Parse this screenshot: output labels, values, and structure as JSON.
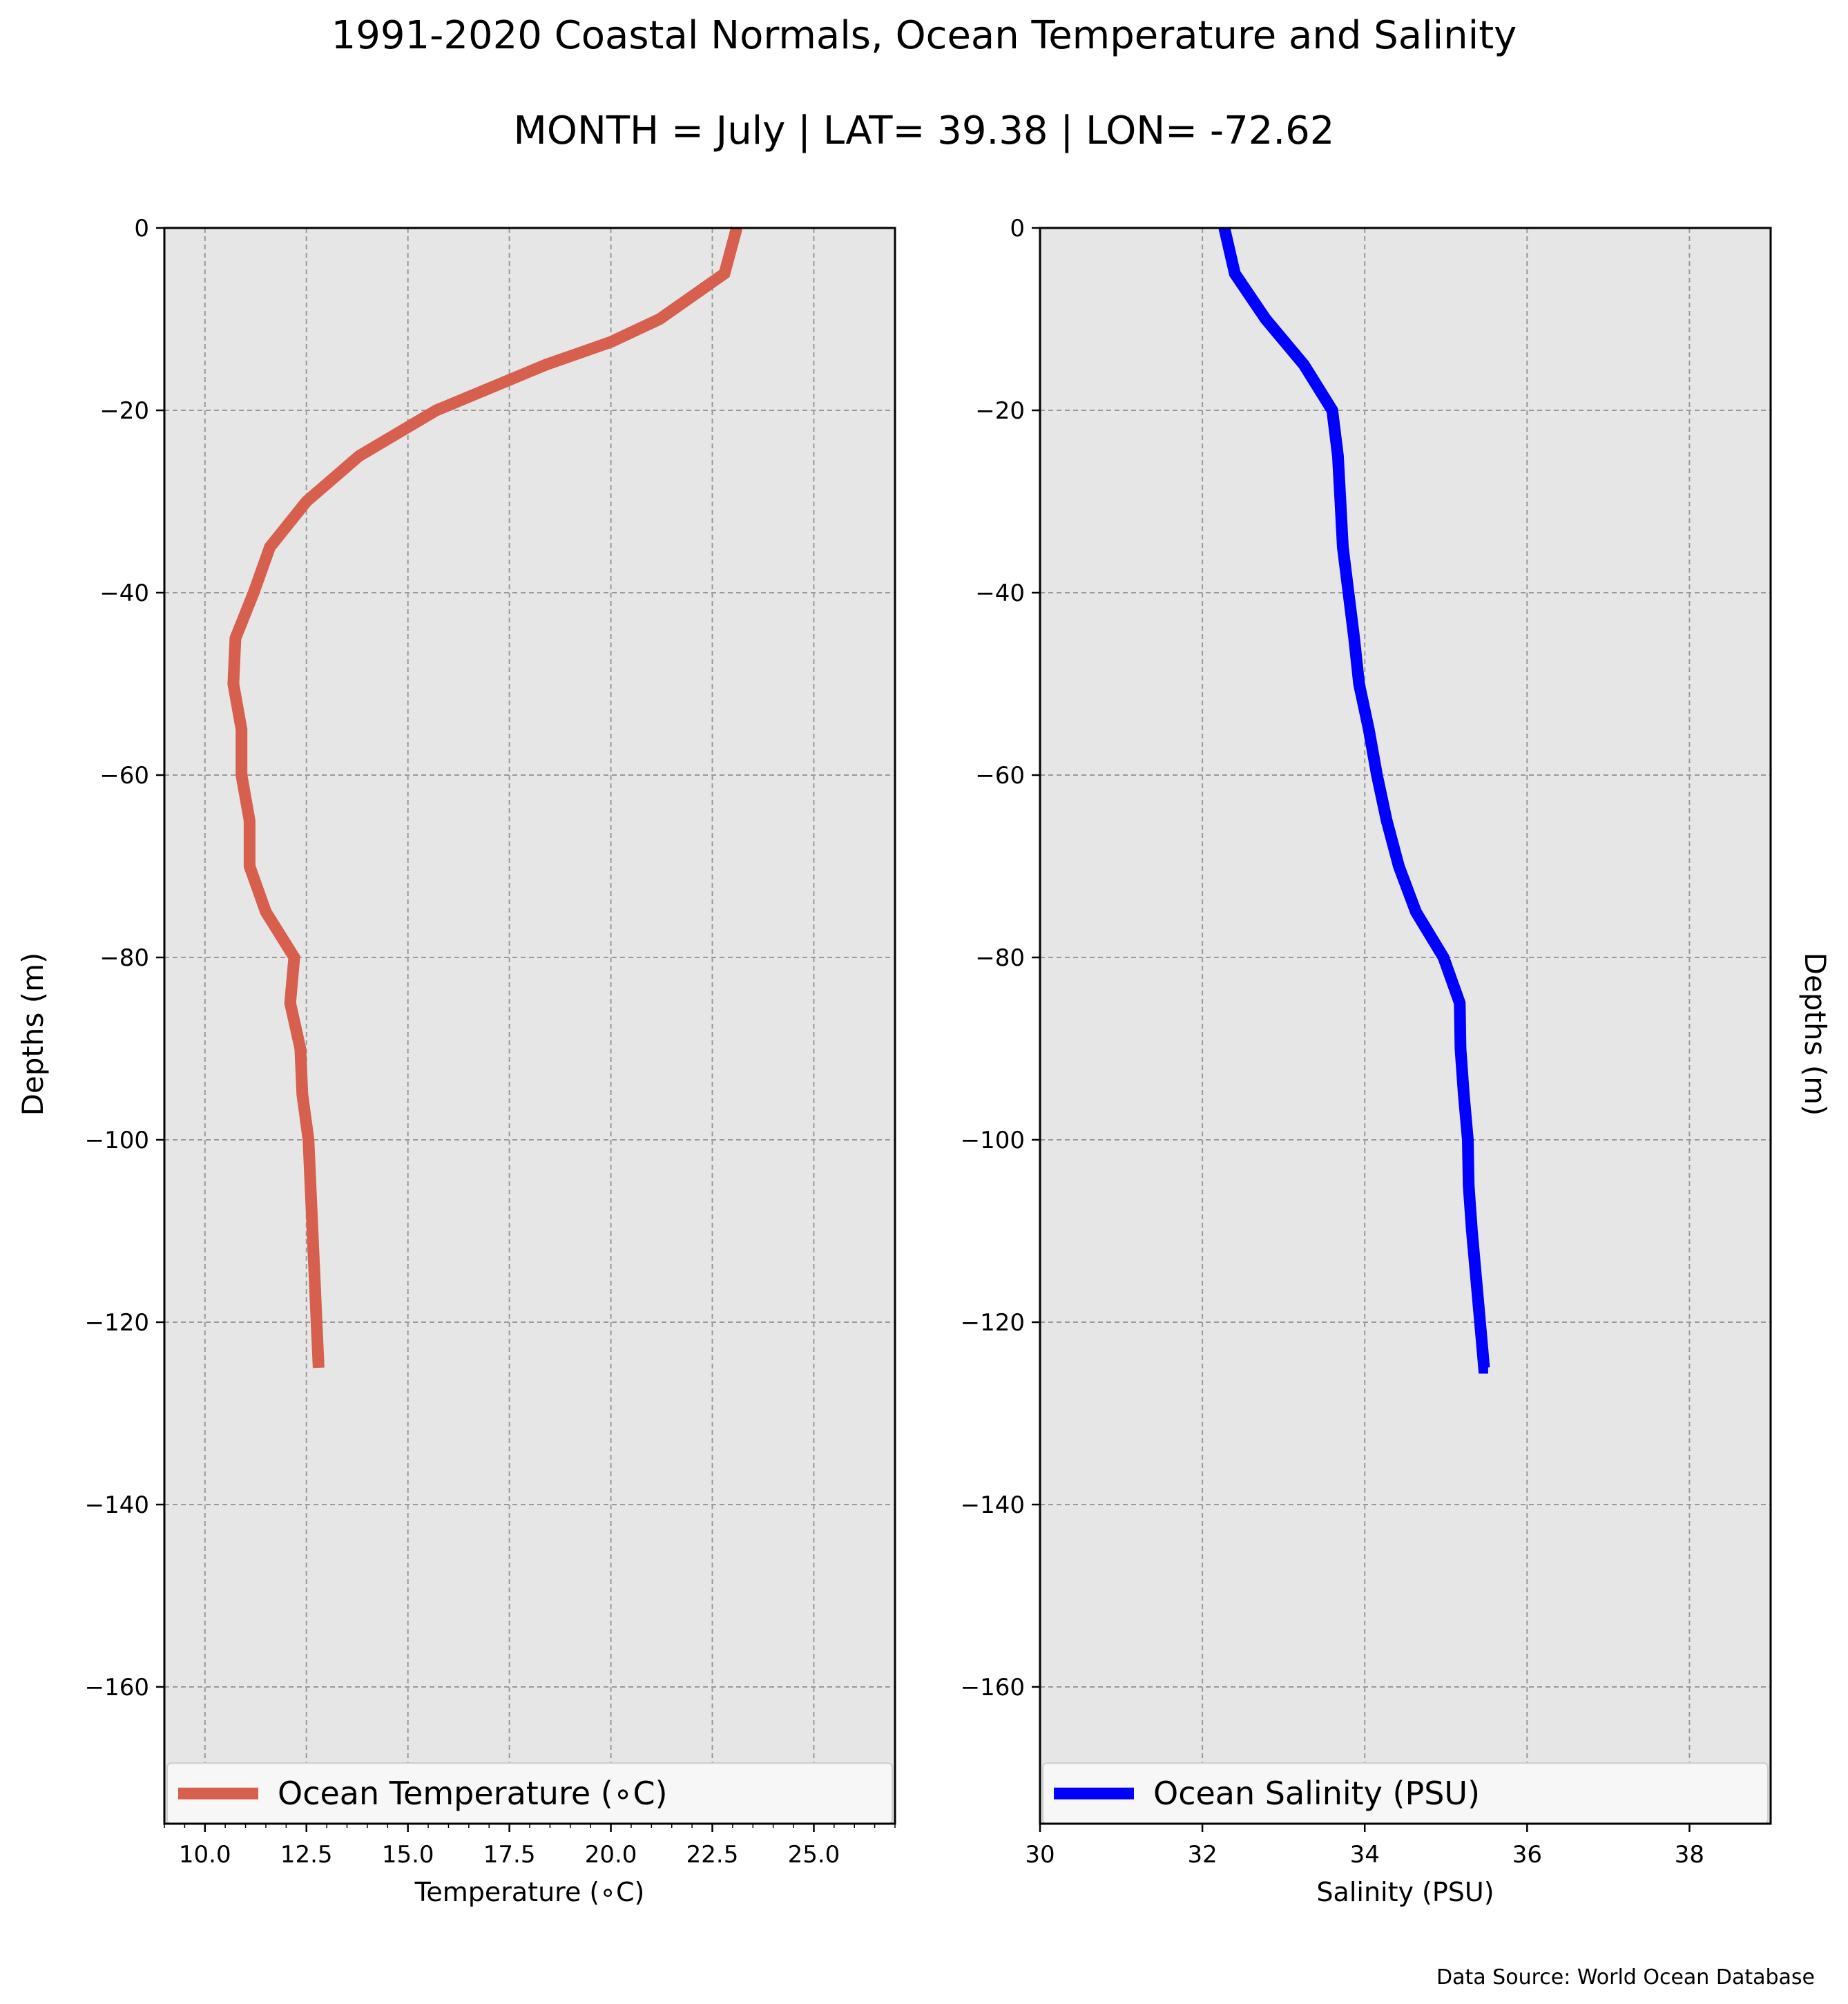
{
  "title": "1991-2020 Coastal Normals, Ocean Temperature and Salinity",
  "subtitle": "MONTH = July | LAT= 39.38 | LON= -72.62",
  "source_note": "Data Source: World Ocean Database",
  "colors": {
    "temperature": "#d65f4e",
    "salinity": "#0000ff",
    "plot_bg": "#e6e6e6",
    "grid": "#999999",
    "legend_bg": "#f7f7f7"
  },
  "chart_data": [
    {
      "type": "line",
      "xlabel": "Temperature (∘C)",
      "ylabel": "Depths (m)",
      "xlim": [
        9.0,
        27.0
      ],
      "ylim": [
        -175,
        0
      ],
      "xticks": [
        10.0,
        12.5,
        15.0,
        17.5,
        20.0,
        22.5,
        25.0
      ],
      "xtick_labels": [
        "10.0",
        "12.5",
        "15.0",
        "17.5",
        "20.0",
        "22.5",
        "25.0"
      ],
      "yticks": [
        0,
        -20,
        -40,
        -60,
        -80,
        -100,
        -120,
        -140,
        -160
      ],
      "ytick_labels": [
        "0",
        "−20",
        "−40",
        "−60",
        "−80",
        "−100",
        "−120",
        "−140",
        "−160"
      ],
      "grid": true,
      "legend_position": "bottom",
      "series": [
        {
          "name": "Ocean Temperature (∘C)",
          "color": "#d65f4e",
          "x": [
            23.1,
            22.8,
            21.2,
            20.0,
            18.4,
            15.7,
            13.8,
            12.5,
            11.6,
            11.2,
            10.75,
            10.7,
            10.9,
            10.9,
            11.1,
            11.1,
            11.5,
            12.2,
            12.1,
            12.35,
            12.4,
            12.55,
            12.6,
            12.65,
            12.7,
            12.75,
            12.8
          ],
          "y": [
            0,
            -5,
            -10,
            -12.5,
            -15,
            -20,
            -25,
            -30,
            -35,
            -40,
            -45,
            -50,
            -55,
            -60,
            -65,
            -70,
            -75,
            -80,
            -85,
            -90,
            -95,
            -100,
            -105,
            -110,
            -115,
            -120,
            -125
          ]
        }
      ]
    },
    {
      "type": "line",
      "xlabel": "Salinity (PSU)",
      "ylabel": "Depths (m)",
      "xlim": [
        30,
        39
      ],
      "ylim": [
        -175,
        0
      ],
      "xticks": [
        30,
        32,
        34,
        36,
        38
      ],
      "xtick_labels": [
        "30",
        "32",
        "34",
        "36",
        "38"
      ],
      "yticks": [
        0,
        -20,
        -40,
        -60,
        -80,
        -100,
        -120,
        -140,
        -160
      ],
      "ytick_labels": [
        "0",
        "−20",
        "−40",
        "−60",
        "−80",
        "−100",
        "−120",
        "−140",
        "−160"
      ],
      "grid": true,
      "legend_position": "bottom",
      "series": [
        {
          "name": "Ocean Salinity (PSU)",
          "color": "#0000ff",
          "x": [
            32.27,
            32.4,
            32.78,
            33.25,
            33.6,
            33.67,
            33.7,
            33.73,
            33.8,
            33.87,
            33.93,
            34.05,
            34.15,
            34.27,
            34.42,
            34.63,
            34.97,
            35.17,
            35.18,
            35.22,
            35.27,
            35.28,
            35.32,
            35.37,
            35.42,
            35.47,
            35.52
          ],
          "y": [
            0,
            -5,
            -10,
            -15,
            -20,
            -25,
            -30,
            -35,
            -40,
            -45,
            -50,
            -55,
            -60,
            -65,
            -70,
            -75,
            -80,
            -85,
            -90,
            -95,
            -100,
            -105,
            -110,
            -115,
            -120,
            -125,
            -125
          ]
        }
      ]
    }
  ]
}
